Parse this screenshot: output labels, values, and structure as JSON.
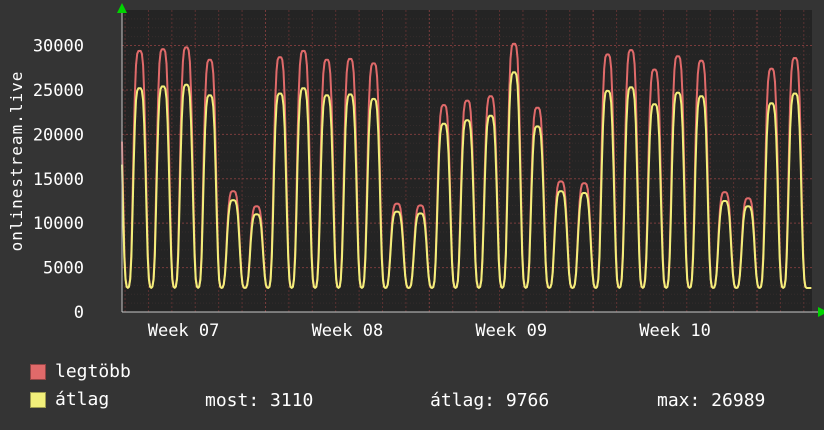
{
  "chart_data": {
    "type": "line",
    "y_axis_title": "onlinestream.live",
    "x_axis": {
      "tick_labels": [
        "Week 07",
        "Week 08",
        "Week 09",
        "Week 10"
      ],
      "label_day_centers": [
        3.5,
        10.5,
        17.5,
        24.5
      ],
      "week_boundaries": [
        7,
        14,
        21,
        28
      ],
      "days": 30,
      "domain": [
        0.87,
        30.35
      ]
    },
    "y_axis": {
      "ticks": [
        0,
        5000,
        10000,
        15000,
        20000,
        25000,
        30000
      ],
      "lim": [
        0,
        34000
      ]
    },
    "baseline_trough": 2700,
    "series": [
      {
        "name": "legtöbb",
        "color": "#e06a6a",
        "daily_peaks": [
          29400,
          29400,
          29600,
          29800,
          28400,
          13600,
          11900,
          28700,
          29400,
          28400,
          28500,
          28000,
          12200,
          12000,
          23300,
          23800,
          24300,
          30200,
          23000,
          14700,
          14500,
          29000,
          29500,
          27300,
          28800,
          28300,
          13500,
          12800,
          27400,
          28600
        ]
      },
      {
        "name": "átlag",
        "color": "#f2ef7a",
        "daily_peaks": [
          25200,
          25200,
          25400,
          25600,
          24400,
          12600,
          11000,
          24600,
          25200,
          24400,
          24500,
          24000,
          11300,
          11100,
          21200,
          21600,
          22100,
          26989,
          20900,
          13600,
          13400,
          24900,
          25300,
          23400,
          24700,
          24300,
          12500,
          11900,
          23500,
          24600
        ]
      }
    ],
    "stats": {
      "most": 3110,
      "atlag": 9766,
      "max": 26989
    },
    "style": {
      "background": "#343434",
      "plot_background": "#242424",
      "grid_major": "#7a3c3c",
      "grid_daily": "#5c3131",
      "grid_minor": "#342c2c",
      "axis": "#c8c8c8",
      "arrow": "#00d400",
      "text": "#ffffff"
    }
  },
  "legend": {
    "items": [
      {
        "label": "legtöbb",
        "color": "#e06a6a"
      },
      {
        "label": "átlag",
        "color": "#f2ef7a"
      }
    ],
    "stats": [
      {
        "text": "most: 3110"
      },
      {
        "text": "átlag: 9766"
      },
      {
        "text": "max: 26989"
      }
    ]
  }
}
